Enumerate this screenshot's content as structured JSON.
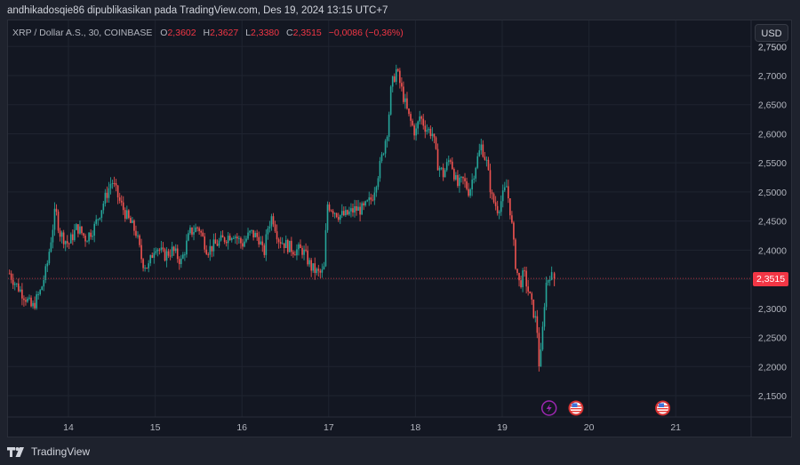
{
  "header": {
    "publisher_line": "andhikadosqie86 dipublikasikan pada TradingView.com, Des 19, 2024 13:15 UTC+7"
  },
  "legend": {
    "symbol": "XRP / Dollar A.S., 30, COINBASE",
    "open_label": "O",
    "open": "2,3602",
    "high_label": "H",
    "high": "2,3627",
    "low_label": "L",
    "low": "2,3380",
    "close_label": "C",
    "close": "2,3515",
    "change": "−0,0086 (−0,36%)"
  },
  "currency_button": "USD",
  "last_price_label": "2,3515",
  "footer": {
    "brand": "TradingView"
  },
  "colors": {
    "up": "#26a69a",
    "down": "#ef5350",
    "background": "#131722",
    "page": "#1e222d",
    "grid": "#1f2430",
    "last_price": "#f23645",
    "event_purple": "#9c27b0",
    "event_red": "#d32f2f"
  },
  "chart_data": {
    "type": "candlestick",
    "title": "XRP / Dollar A.S., 30, COINBASE",
    "interval": "30",
    "xlabel": "",
    "ylabel": "USD",
    "y_ticks": [
      "2,7500",
      "2,7000",
      "2,6500",
      "2,6000",
      "2,5500",
      "2,5000",
      "2,4500",
      "2,4000",
      "2,3500",
      "2,3000",
      "2,2500",
      "2,2000",
      "2,1500"
    ],
    "y_tick_values": [
      2.75,
      2.7,
      2.65,
      2.6,
      2.55,
      2.5,
      2.45,
      2.4,
      2.35,
      2.3,
      2.25,
      2.2,
      2.15
    ],
    "ylim": [
      2.115,
      2.76
    ],
    "x_ticks": [
      "14",
      "15",
      "16",
      "17",
      "18",
      "19",
      "20",
      "21"
    ],
    "x_tick_days": [
      14,
      15,
      16,
      17,
      18,
      19,
      20,
      21
    ],
    "xlim_days": [
      13.31,
      21.86
    ],
    "last_price": 2.3515,
    "ohlc_last": {
      "open": 2.3602,
      "high": 2.3627,
      "low": 2.338,
      "close": 2.3515,
      "change": -0.0086,
      "change_pct": -0.36
    },
    "price_path_keypoints": [
      [
        13.32,
        2.36
      ],
      [
        13.4,
        2.34
      ],
      [
        13.5,
        2.32
      ],
      [
        13.58,
        2.3
      ],
      [
        13.68,
        2.33
      ],
      [
        13.75,
        2.37
      ],
      [
        13.8,
        2.42
      ],
      [
        13.85,
        2.47
      ],
      [
        13.9,
        2.43
      ],
      [
        14.0,
        2.41
      ],
      [
        14.1,
        2.44
      ],
      [
        14.2,
        2.42
      ],
      [
        14.3,
        2.44
      ],
      [
        14.4,
        2.48
      ],
      [
        14.5,
        2.52
      ],
      [
        14.6,
        2.48
      ],
      [
        14.7,
        2.45
      ],
      [
        14.78,
        2.43
      ],
      [
        14.85,
        2.38
      ],
      [
        14.92,
        2.37
      ],
      [
        15.0,
        2.41
      ],
      [
        15.1,
        2.39
      ],
      [
        15.2,
        2.4
      ],
      [
        15.3,
        2.38
      ],
      [
        15.4,
        2.43
      ],
      [
        15.5,
        2.44
      ],
      [
        15.6,
        2.4
      ],
      [
        15.7,
        2.41
      ],
      [
        15.8,
        2.42
      ],
      [
        15.9,
        2.43
      ],
      [
        16.0,
        2.41
      ],
      [
        16.1,
        2.43
      ],
      [
        16.2,
        2.42
      ],
      [
        16.25,
        2.39
      ],
      [
        16.3,
        2.44
      ],
      [
        16.35,
        2.46
      ],
      [
        16.42,
        2.42
      ],
      [
        16.5,
        2.41
      ],
      [
        16.6,
        2.4
      ],
      [
        16.7,
        2.4
      ],
      [
        16.8,
        2.37
      ],
      [
        16.88,
        2.36
      ],
      [
        16.92,
        2.36
      ],
      [
        16.95,
        2.37
      ],
      [
        16.98,
        2.48
      ],
      [
        17.05,
        2.47
      ],
      [
        17.12,
        2.46
      ],
      [
        17.2,
        2.46
      ],
      [
        17.3,
        2.47
      ],
      [
        17.4,
        2.47
      ],
      [
        17.5,
        2.49
      ],
      [
        17.6,
        2.55
      ],
      [
        17.68,
        2.61
      ],
      [
        17.72,
        2.68
      ],
      [
        17.78,
        2.71
      ],
      [
        17.85,
        2.67
      ],
      [
        17.92,
        2.63
      ],
      [
        18.0,
        2.6
      ],
      [
        18.05,
        2.63
      ],
      [
        18.12,
        2.61
      ],
      [
        18.2,
        2.6
      ],
      [
        18.25,
        2.55
      ],
      [
        18.32,
        2.53
      ],
      [
        18.4,
        2.56
      ],
      [
        18.48,
        2.51
      ],
      [
        18.55,
        2.52
      ],
      [
        18.62,
        2.5
      ],
      [
        18.7,
        2.55
      ],
      [
        18.76,
        2.58
      ],
      [
        18.82,
        2.55
      ],
      [
        18.88,
        2.49
      ],
      [
        18.95,
        2.47
      ],
      [
        19.0,
        2.49
      ],
      [
        19.05,
        2.51
      ],
      [
        19.1,
        2.46
      ],
      [
        19.15,
        2.38
      ],
      [
        19.2,
        2.34
      ],
      [
        19.25,
        2.36
      ],
      [
        19.3,
        2.33
      ],
      [
        19.35,
        2.3
      ],
      [
        19.4,
        2.27
      ],
      [
        19.43,
        2.19
      ],
      [
        19.46,
        2.25
      ],
      [
        19.5,
        2.34
      ],
      [
        19.55,
        2.36
      ],
      [
        19.58,
        2.35
      ]
    ],
    "events": [
      {
        "type": "earnings-lightning",
        "day": 19.54
      },
      {
        "type": "us-economic-event",
        "day": 19.85
      },
      {
        "type": "us-economic-event",
        "day": 20.85
      }
    ]
  }
}
